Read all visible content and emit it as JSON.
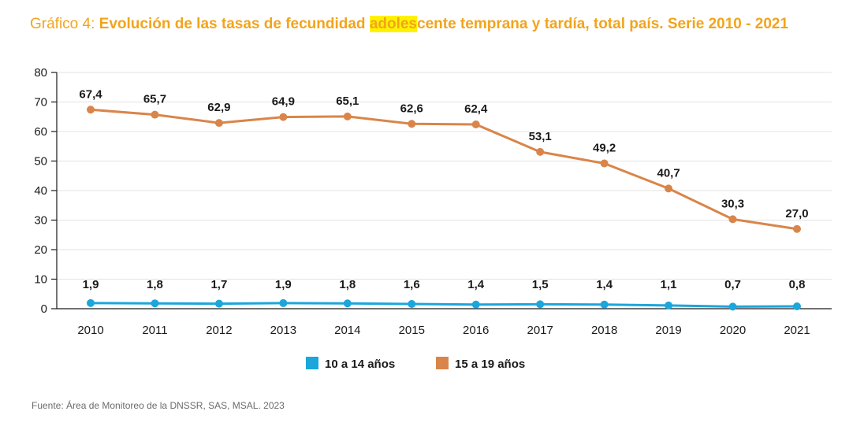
{
  "title": {
    "prefix": "Gráfico 4: ",
    "part1": "Evolución de las tasas de fecundidad ",
    "highlight": "adoles",
    "part2": "cente temprana y tardía, total país. Serie 2010 - 2021"
  },
  "source": "Fuente: Área de Monitoreo de la DNSSR, SAS, MSAL. 2023",
  "colors": {
    "title": "#F2A41C",
    "highlight": "#FFF200",
    "series_10_14": "#1BA6DC",
    "series_15_19": "#D9854A"
  },
  "chart_data": {
    "type": "line",
    "title": "Evolución de las tasas de fecundidad adolescente temprana y tardía, total país. Serie 2010 - 2021",
    "categories": [
      "2010",
      "2011",
      "2012",
      "2013",
      "2014",
      "2015",
      "2016",
      "2017",
      "2018",
      "2019",
      "2020",
      "2021"
    ],
    "ylim": [
      0,
      80
    ],
    "yticks": [
      "0",
      "10",
      "20",
      "30",
      "40",
      "50",
      "60",
      "70",
      "80"
    ],
    "grid": true,
    "legend_position": "bottom",
    "series": [
      {
        "name": "10 a 14 años",
        "color": "#1BA6DC",
        "values": [
          1.9,
          1.8,
          1.7,
          1.9,
          1.8,
          1.6,
          1.4,
          1.5,
          1.4,
          1.1,
          0.7,
          0.8
        ],
        "labels": [
          "1,9",
          "1,8",
          "1,7",
          "1,9",
          "1,8",
          "1,6",
          "1,4",
          "1,5",
          "1,4",
          "1,1",
          "0,7",
          "0,8"
        ]
      },
      {
        "name": "15 a 19 años",
        "color": "#D9854A",
        "values": [
          67.4,
          65.7,
          62.9,
          64.9,
          65.1,
          62.6,
          62.4,
          53.1,
          49.2,
          40.7,
          30.3,
          27.0
        ],
        "labels": [
          "67,4",
          "65,7",
          "62,9",
          "64,9",
          "65,1",
          "62,6",
          "62,4",
          "53,1",
          "49,2",
          "40,7",
          "30,3",
          "27,0"
        ]
      }
    ]
  }
}
